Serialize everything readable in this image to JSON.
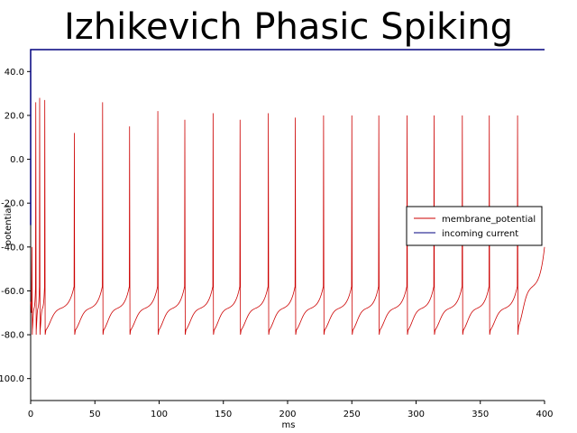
{
  "chart_data": {
    "type": "line",
    "title": "Izhikevich Phasic Spiking",
    "xlabel": "ms",
    "ylabel": "potential",
    "xlim": [
      0,
      400
    ],
    "ylim": [
      -110,
      50
    ],
    "x_ticks": [
      0,
      50,
      100,
      150,
      200,
      250,
      300,
      350,
      400
    ],
    "x_tick_labels": [
      "0",
      "50",
      "100",
      "150",
      "200",
      "250",
      "300",
      "350",
      "400"
    ],
    "y_ticks": [
      -100,
      -80,
      -60,
      -40,
      -20,
      0,
      20,
      40
    ],
    "y_tick_labels": [
      "-100.0",
      "-80.0",
      "-60.0",
      "-40.0",
      "-20.0",
      "0.0",
      "20.0",
      "40.0"
    ],
    "grid": false,
    "legend_position": "right",
    "series": [
      {
        "name": "membrane_potential",
        "color": "#cc0000",
        "reset_potential": -80,
        "approx_spike_times_ms": [
          1,
          4,
          7,
          11,
          34,
          56,
          77,
          99,
          120,
          142,
          163,
          185,
          206,
          228,
          250,
          271,
          293,
          314,
          336,
          357,
          379
        ],
        "approx_spike_peaks": [
          -40,
          26,
          28,
          27,
          12,
          26,
          15,
          22,
          18,
          21,
          18,
          21,
          19,
          20,
          20,
          20,
          20,
          20,
          20,
          20,
          20
        ],
        "final_value": -40
      },
      {
        "name": "incoming current",
        "color": "#00007f",
        "x": [
          0,
          0,
          400
        ],
        "y": [
          -30,
          50,
          50
        ]
      }
    ]
  }
}
